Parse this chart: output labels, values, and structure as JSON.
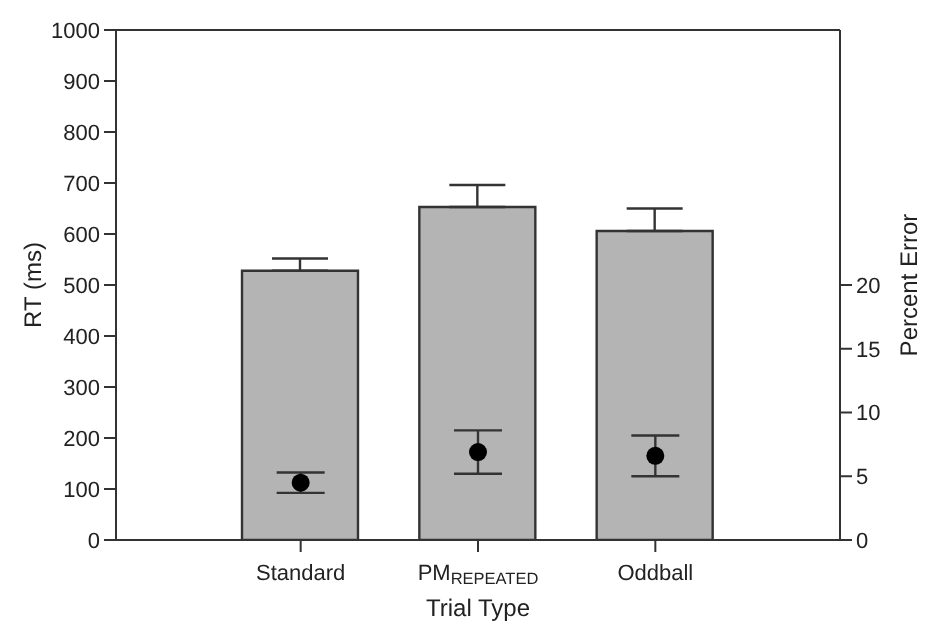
{
  "chart_data": {
    "type": "bar",
    "xlabel": "Trial Type",
    "ylabel": "RT (ms)",
    "y2label": "Percent Error",
    "categories": [
      "Standard",
      "PM$_{REPEATED}$",
      "Oddball"
    ],
    "ylim": [
      0,
      1000
    ],
    "yticks": [
      0,
      100,
      200,
      300,
      400,
      500,
      600,
      700,
      800,
      900,
      1000
    ],
    "y2lim": [
      0,
      40
    ],
    "y2ticks": [
      0,
      5,
      10,
      15,
      20
    ],
    "grid": false,
    "legend": false,
    "series": [
      {
        "color": "#b4b4b4",
        "values": [
          528,
          653,
          606
        ],
        "errors": [
          [
            528,
            552
          ],
          [
            653,
            696
          ],
          [
            606,
            650
          ]
        ]
      },
      {
        "type": "scatter",
        "axis": "y2",
        "color": "#000000",
        "marker": "circle",
        "values": [
          4.5,
          6.9,
          6.6
        ],
        "errors": [
          [
            3.7,
            5.3
          ],
          [
            5.2,
            8.6
          ],
          [
            5.0,
            8.2
          ]
        ]
      }
    ]
  }
}
